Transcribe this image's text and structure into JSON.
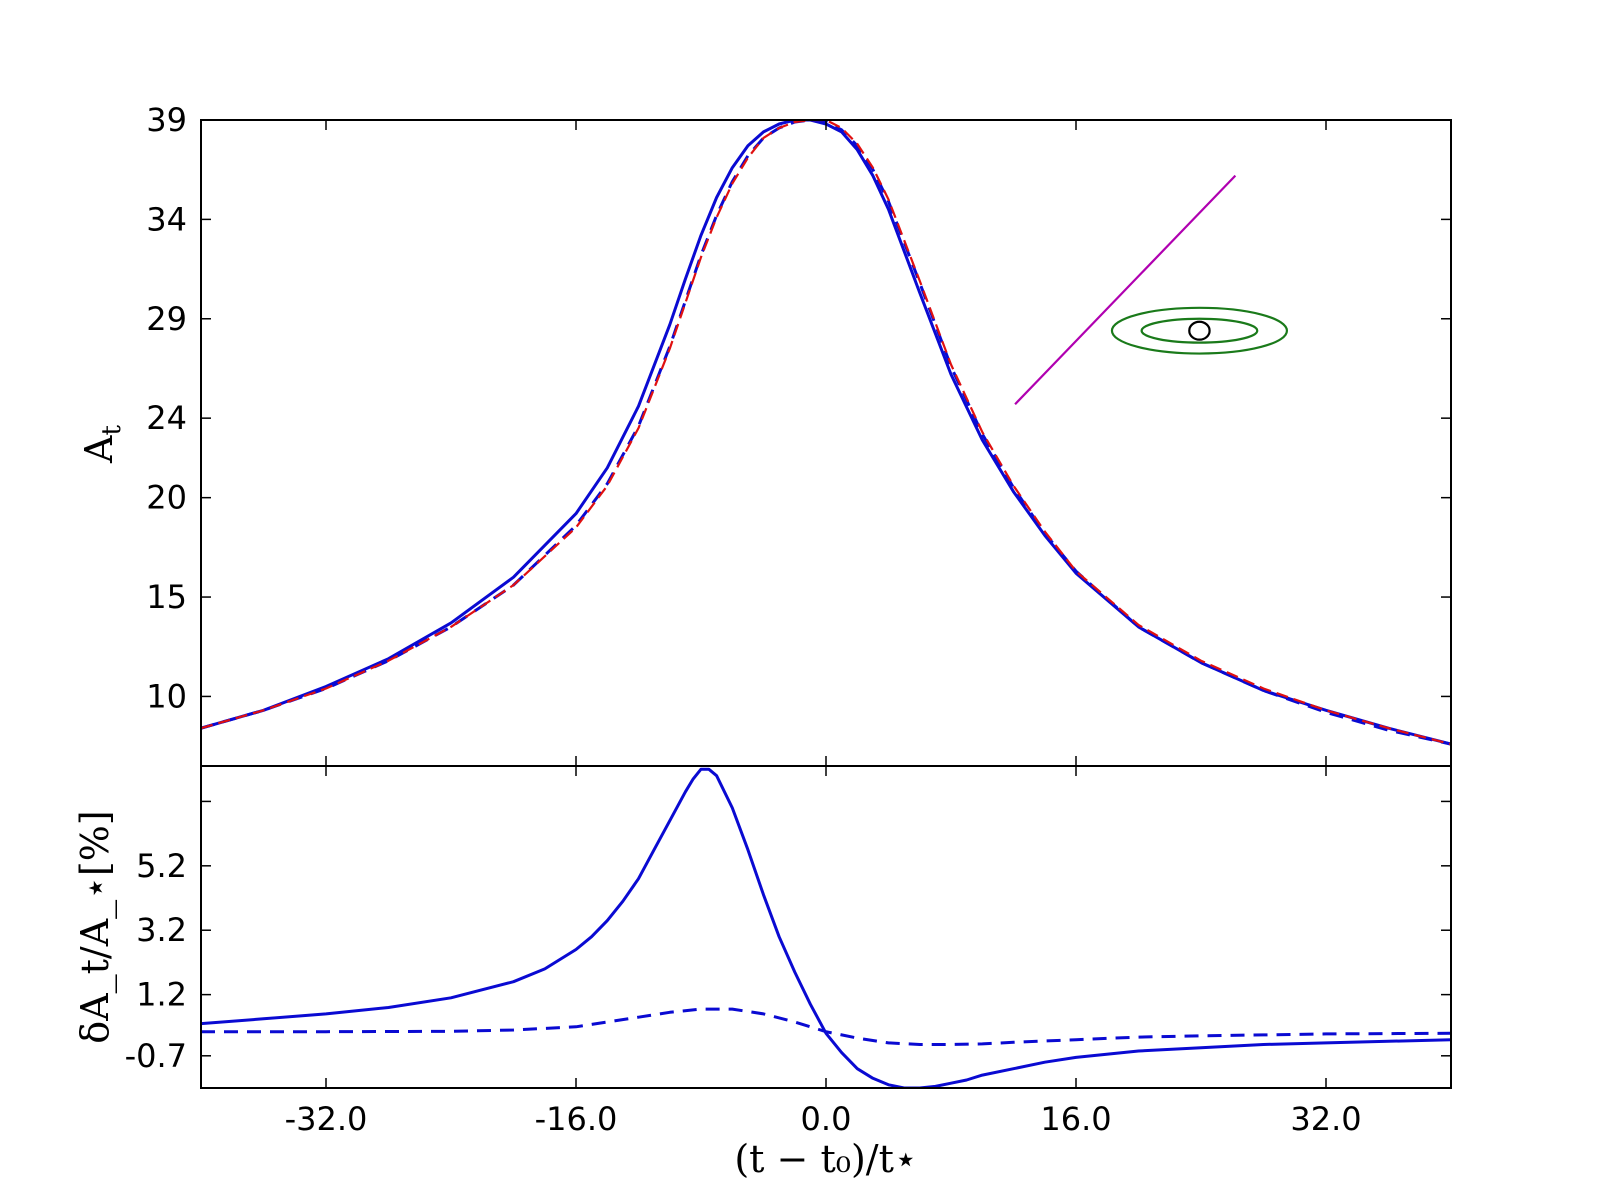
{
  "chart_data": [
    {
      "type": "line",
      "panel": "top",
      "xlim": [
        -40,
        40
      ],
      "ylim": [
        6.5,
        39
      ],
      "yticks": [
        10,
        15,
        20,
        24,
        29,
        34,
        39
      ],
      "ytick_labels": [
        "10",
        "15",
        "20",
        "24",
        "29",
        "34",
        "39"
      ],
      "ylabel_main": "A",
      "ylabel_sub": "t",
      "xticks": [
        -32,
        -16,
        0,
        16,
        32
      ],
      "grid": false,
      "colors": {
        "solid": "#0a0ad2",
        "dashed": "#0a0ad2",
        "reference": "#e01010",
        "line": "#b000b0",
        "ellipses": "#1a7a1a",
        "source": "#000000"
      },
      "series": [
        {
          "style": "solid",
          "x": [
            -40,
            -36,
            -32,
            -28,
            -24,
            -20,
            -16,
            -14,
            -12,
            -10,
            -9,
            -8,
            -7,
            -6,
            -5,
            -4,
            -3,
            -2,
            -1,
            -0.5,
            0,
            1,
            2,
            3,
            4,
            6,
            8,
            10,
            12,
            14,
            16,
            20,
            24,
            28,
            32,
            36,
            40
          ],
          "y": [
            8.4,
            9.3,
            10.5,
            11.9,
            13.7,
            16.0,
            19.2,
            21.5,
            24.6,
            28.7,
            31.0,
            33.2,
            35.1,
            36.6,
            37.7,
            38.4,
            38.8,
            39.0,
            39.0,
            38.9,
            38.8,
            38.4,
            37.5,
            36.2,
            34.5,
            30.3,
            26.2,
            22.9,
            20.3,
            18.1,
            16.2,
            13.5,
            11.7,
            10.3,
            9.3,
            8.4,
            7.6
          ]
        },
        {
          "style": "dashed",
          "x": [
            -40,
            -36,
            -32,
            -28,
            -24,
            -20,
            -16,
            -14,
            -12,
            -10,
            -9,
            -8,
            -7,
            -6,
            -5,
            -4,
            -3,
            -2,
            -1,
            0,
            1,
            2,
            3,
            4,
            6,
            8,
            10,
            12,
            14,
            16,
            20,
            24,
            28,
            32,
            36,
            40
          ],
          "y": [
            8.4,
            9.3,
            10.4,
            11.8,
            13.5,
            15.6,
            18.6,
            20.7,
            23.6,
            27.6,
            29.9,
            32.2,
            34.2,
            35.9,
            37.2,
            38.1,
            38.6,
            38.9,
            39.0,
            38.9,
            38.5,
            37.7,
            36.5,
            34.9,
            30.8,
            26.6,
            23.2,
            20.5,
            18.2,
            16.3,
            13.5,
            11.7,
            10.3,
            9.2,
            8.3,
            7.6
          ]
        },
        {
          "style": "reference",
          "x": [
            -40,
            -36,
            -32,
            -28,
            -24,
            -20,
            -16,
            -14,
            -12,
            -10,
            -9,
            -8,
            -7,
            -6,
            -5,
            -4,
            -3,
            -2,
            -1,
            0,
            1,
            2,
            3,
            4,
            6,
            8,
            10,
            12,
            14,
            16,
            20,
            24,
            28,
            32,
            36,
            40
          ],
          "y": [
            8.4,
            9.3,
            10.4,
            11.8,
            13.5,
            15.6,
            18.5,
            20.6,
            23.5,
            27.5,
            29.8,
            32.1,
            34.1,
            35.8,
            37.1,
            38.1,
            38.6,
            38.9,
            39.0,
            39.0,
            38.6,
            37.8,
            36.6,
            35.0,
            30.9,
            26.7,
            23.3,
            20.6,
            18.3,
            16.3,
            13.6,
            11.8,
            10.4,
            9.3,
            8.4,
            7.6
          ]
        }
      ],
      "inset": {
        "segment_start": [
          12.1,
          24.7
        ],
        "segment_end": [
          26.2,
          36.2
        ],
        "ellipses_center": [
          23.9,
          28.4
        ],
        "ellipse_outer_radii": [
          5.6,
          1.15
        ],
        "ellipse_inner_radii": [
          3.7,
          0.6
        ],
        "source_radius": [
          0.65,
          0.45
        ]
      }
    },
    {
      "type": "line",
      "panel": "bottom",
      "xlim": [
        -40,
        40
      ],
      "ylim": [
        -1.7,
        8.3
      ],
      "yticks": [
        -0.7,
        1.2,
        3.2,
        5.2
      ],
      "ytick_labels": [
        "-0.7",
        "1.2",
        "3.2",
        "5.2"
      ],
      "extra_ytick_marks": [
        7.2
      ],
      "ylabel": "δA_t/A_⋆[%]",
      "xticks": [
        -32,
        -16,
        0,
        16,
        32
      ],
      "xtick_labels": [
        "-32.0",
        "-16.0",
        "0.0",
        "16.0",
        "32.0"
      ],
      "xlabel": "(t − t₀)/t⋆",
      "grid": false,
      "colors": {
        "solid": "#0a0ad2",
        "dashed": "#0a0ad2"
      },
      "series": [
        {
          "style": "solid",
          "x": [
            -40,
            -36,
            -32,
            -28,
            -24,
            -20,
            -18,
            -16,
            -15,
            -14,
            -13,
            -12,
            -11,
            -10,
            -9,
            -8.5,
            -8,
            -7.5,
            -7,
            -6,
            -5,
            -4,
            -3,
            -2,
            -1,
            0,
            1,
            2,
            3,
            4,
            5,
            6,
            7,
            8,
            9,
            10,
            12,
            14,
            16,
            20,
            24,
            28,
            32,
            36,
            40
          ],
          "y": [
            0.3,
            0.45,
            0.6,
            0.8,
            1.1,
            1.6,
            2.0,
            2.6,
            3.0,
            3.5,
            4.1,
            4.8,
            5.7,
            6.6,
            7.5,
            7.9,
            8.2,
            8.2,
            8.0,
            7.0,
            5.7,
            4.3,
            3.0,
            1.9,
            0.9,
            0.0,
            -0.6,
            -1.1,
            -1.4,
            -1.6,
            -1.7,
            -1.7,
            -1.65,
            -1.55,
            -1.45,
            -1.3,
            -1.1,
            -0.9,
            -0.75,
            -0.55,
            -0.45,
            -0.35,
            -0.3,
            -0.25,
            -0.2
          ]
        },
        {
          "style": "dashed",
          "x": [
            -40,
            -32,
            -24,
            -20,
            -16,
            -14,
            -12,
            -10,
            -8,
            -6,
            -4,
            -2,
            0,
            2,
            4,
            6,
            8,
            10,
            12,
            16,
            20,
            24,
            28,
            32,
            36,
            40
          ],
          "y": [
            0.05,
            0.05,
            0.06,
            0.1,
            0.2,
            0.35,
            0.5,
            0.65,
            0.75,
            0.75,
            0.6,
            0.35,
            0.05,
            -0.15,
            -0.3,
            -0.35,
            -0.35,
            -0.33,
            -0.28,
            -0.2,
            -0.12,
            -0.08,
            -0.05,
            -0.02,
            -0.01,
            0.0
          ]
        }
      ]
    }
  ]
}
